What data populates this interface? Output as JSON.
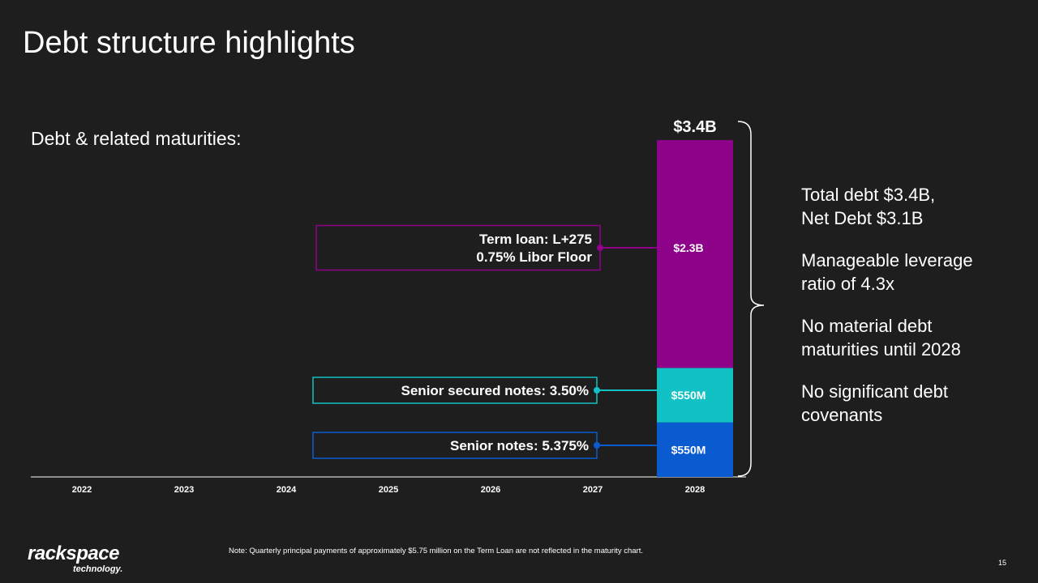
{
  "slide": {
    "title": "Debt structure highlights",
    "subtitle": "Debt & related maturities:",
    "note": "Note: Quarterly principal payments of approximately $5.75 million on the Term Loan are not reflected in the maturity chart.",
    "page_number": "15",
    "logo_main": "rackspace",
    "logo_sub": "technology."
  },
  "bullets": [
    {
      "line1": "Total debt $3.4B,",
      "line2": "Net Debt $3.1B"
    },
    {
      "line1": "Manageable leverage",
      "line2": "ratio of 4.3x"
    },
    {
      "line1": "No material debt",
      "line2": "maturities until 2028"
    },
    {
      "line1": "No significant debt",
      "line2": "covenants"
    }
  ],
  "chart_data": {
    "type": "bar",
    "stacked": true,
    "categories": [
      "2022",
      "2023",
      "2024",
      "2025",
      "2026",
      "2027",
      "2028"
    ],
    "series": [
      {
        "name": "Senior notes: 5.375%",
        "values": [
          0,
          0,
          0,
          0,
          0,
          0,
          0.55
        ],
        "label": "$550M",
        "color": "#0a5bd0",
        "callout": [
          "Senior notes: 5.375%"
        ]
      },
      {
        "name": "Senior secured notes: 3.50%",
        "values": [
          0,
          0,
          0,
          0,
          0,
          0,
          0.55
        ],
        "label": "$550M",
        "color": "#12c1c3",
        "callout": [
          "Senior secured notes: 3.50%"
        ]
      },
      {
        "name": "Term loan: L+275",
        "values": [
          0,
          0,
          0,
          0,
          0,
          0,
          2.3
        ],
        "label": "$2.3B",
        "color": "#8e0289",
        "callout": [
          "Term loan: L+275",
          "0.75% Libor Floor"
        ]
      }
    ],
    "total_label": "$3.4B",
    "units": "USD billions",
    "ylim": [
      0,
      3.4
    ],
    "grid": false
  }
}
